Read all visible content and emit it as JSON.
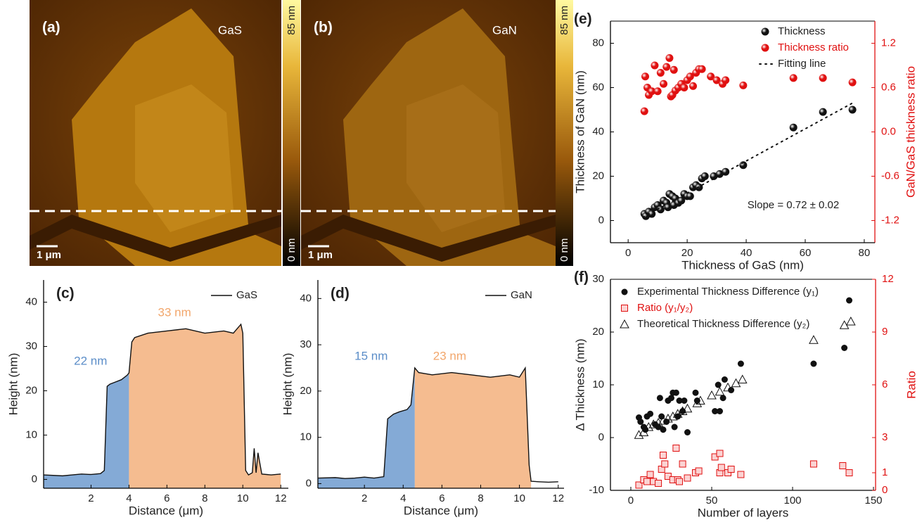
{
  "images": [
    {
      "panel": "(a)",
      "label": "GaS",
      "scale_bar": "1 μm",
      "colorbar": {
        "max": "85 nm",
        "min": "0 nm"
      }
    },
    {
      "panel": "(b)",
      "label": "GaN",
      "scale_bar": "1 μm",
      "colorbar": {
        "max": "85 nm",
        "min": "0 nm"
      }
    }
  ],
  "chart_data": [
    {
      "type": "line",
      "panel": "(c)",
      "xlabel": "Distance (μm)",
      "ylabel": "Height (nm)",
      "xlim": [
        -0.5,
        12.4
      ],
      "ylim": [
        -2,
        45
      ],
      "xticks": [
        2,
        4,
        6,
        8,
        10,
        12
      ],
      "yticks": [
        0,
        10,
        20,
        30,
        40
      ],
      "x": [
        -0.5,
        0.5,
        1,
        1.5,
        2,
        2.5,
        2.7,
        2.85,
        3.0,
        3.3,
        3.6,
        3.9,
        4.0,
        4.15,
        4.3,
        5,
        6,
        7,
        8,
        9,
        9.5,
        9.9,
        10.0,
        10.15,
        10.3,
        10.5,
        10.6,
        10.7,
        10.8,
        11,
        11.5,
        12
      ],
      "series": [
        {
          "name": "GaS",
          "color": "#111111",
          "values": [
            1,
            0.8,
            1,
            1.2,
            1.1,
            1.3,
            2,
            21,
            21.5,
            22,
            22.5,
            23.5,
            24,
            31,
            32,
            33,
            33.5,
            34,
            33,
            33.5,
            33,
            35,
            33,
            2,
            1,
            1.5,
            7,
            1.5,
            6,
            1.2,
            1,
            1.2
          ]
        }
      ],
      "regions": [
        {
          "label": "22 nm",
          "color": "#5b8dc8",
          "x": [
            -0.5,
            4.0
          ]
        },
        {
          "label": "33 nm",
          "color": "#f2a66b",
          "x": [
            4.0,
            12
          ]
        }
      ]
    },
    {
      "type": "line",
      "panel": "(d)",
      "xlabel": "Distance (μm)",
      "ylabel": "Height (nm)",
      "xlim": [
        -0.4,
        12.3
      ],
      "ylim": [
        -1,
        44
      ],
      "xticks": [
        2,
        4,
        6,
        8,
        10,
        12
      ],
      "yticks": [
        0,
        10,
        20,
        30,
        40
      ],
      "x": [
        -0.4,
        0.5,
        1,
        1.5,
        2,
        2.5,
        3.0,
        3.2,
        3.5,
        3.8,
        4.2,
        4.4,
        4.6,
        4.8,
        5.5,
        6.5,
        7.5,
        8.5,
        9.5,
        10.0,
        10.3,
        10.5,
        10.6,
        11,
        11.5,
        12
      ],
      "series": [
        {
          "name": "GaN",
          "color": "#111111",
          "values": [
            1.2,
            1.3,
            1.1,
            1.2,
            1.4,
            1.2,
            1.5,
            14,
            15,
            15.5,
            16,
            17,
            25,
            24,
            23.5,
            24,
            23.5,
            23,
            23.5,
            23,
            25,
            4,
            0.5,
            0.4,
            0.3,
            0.4
          ]
        }
      ],
      "regions": [
        {
          "label": "15 nm",
          "color": "#5b8dc8",
          "x": [
            -0.4,
            4.6
          ]
        },
        {
          "label": "23 nm",
          "color": "#f2a66b",
          "x": [
            4.6,
            10.6
          ]
        }
      ]
    },
    {
      "type": "scatter",
      "panel": "(e)",
      "xlabel": "Thickness of GaS (nm)",
      "ylabel": "Thickness of GaN (nm)",
      "y2label": "GaN/GaS thickness ratio",
      "xlim": [
        -6,
        83.6
      ],
      "ylim": [
        -10,
        90
      ],
      "y2lim": [
        -1.5,
        1.5
      ],
      "xticks": [
        0,
        20,
        40,
        60,
        80
      ],
      "yticks": [
        0,
        20,
        40,
        60,
        80
      ],
      "y2ticks": [
        -1.2,
        -0.6,
        {
          "value": 0,
          "label": "0.0"
        },
        0.6,
        1.2
      ],
      "annotation": "Slope = 0.72 ±  0.02",
      "series": [
        {
          "name": "Thickness",
          "color": "#111111",
          "marker": "sphere",
          "x": [
            5.5,
            6,
            7,
            8,
            9,
            10,
            11,
            12,
            13,
            13.5,
            14,
            15,
            15.5,
            16,
            17,
            18,
            19,
            20,
            21,
            22,
            23,
            24,
            25,
            26,
            29,
            31,
            33,
            39,
            56,
            66,
            76
          ],
          "values": [
            3,
            2,
            4,
            3,
            6,
            7,
            5,
            9,
            8,
            6,
            12,
            11,
            7,
            10,
            8,
            9,
            12,
            11,
            11,
            15,
            16,
            15,
            19,
            20,
            20,
            21,
            22,
            25,
            42,
            49,
            50
          ]
        },
        {
          "name": "Thickness ratio",
          "color": "#e01010",
          "marker": "sphere",
          "axis": "y2",
          "x": [
            5.5,
            5.8,
            6.5,
            7,
            8,
            9,
            10,
            11,
            12,
            13,
            14,
            14.5,
            15,
            15.5,
            16,
            17,
            18,
            19,
            20,
            21,
            22,
            23,
            24,
            25,
            28,
            30,
            32,
            33,
            39,
            56,
            66,
            76
          ],
          "values": [
            0.28,
            0.75,
            0.6,
            0.5,
            0.55,
            0.9,
            0.55,
            0.8,
            0.65,
            0.88,
            1.0,
            0.48,
            0.5,
            0.84,
            0.56,
            0.6,
            0.65,
            0.6,
            0.7,
            0.75,
            0.62,
            0.8,
            0.85,
            0.85,
            0.75,
            0.7,
            0.65,
            0.7,
            0.63,
            0.73,
            0.73,
            0.67
          ]
        },
        {
          "name": "Fitting line",
          "color": "#111111",
          "marker": "dotted-line",
          "x": [
            5,
            76
          ],
          "values": [
            1.5,
            53
          ]
        }
      ]
    },
    {
      "type": "scatter",
      "panel": "(f)",
      "xlabel": "Number of layers",
      "ylabel": "Δ Thickness (nm)",
      "y2label": "Ratio",
      "xlim": [
        -12.6,
        151.3
      ],
      "ylim": [
        -10,
        30
      ],
      "y2lim": [
        0,
        12
      ],
      "xticks": [
        0,
        50,
        100,
        150
      ],
      "yticks": [
        -10,
        0,
        10,
        20,
        30
      ],
      "y2ticks": [
        0,
        1,
        3,
        6,
        9,
        12
      ],
      "series": [
        {
          "name": "Experimental Thickness Difference (y₁)",
          "color": "#111111",
          "marker": "circle",
          "x": [
            5,
            6,
            8,
            9,
            10,
            12,
            15,
            17,
            18,
            19,
            20,
            22,
            23,
            25,
            26,
            27,
            28,
            29,
            30,
            32,
            33,
            35,
            40,
            41,
            52,
            54,
            55,
            57,
            58,
            62,
            68,
            113,
            132,
            135
          ],
          "values": [
            3.8,
            3,
            2,
            1.5,
            4,
            4.5,
            2.5,
            2,
            7.5,
            4,
            1.5,
            3,
            7,
            7.5,
            8.5,
            2,
            8.5,
            4,
            7,
            5,
            7,
            1,
            8.5,
            7,
            5,
            10,
            5,
            7.5,
            11,
            9,
            14,
            14,
            17,
            26
          ]
        },
        {
          "name": "Ratio (y₁/y₂)",
          "color": "#e01010",
          "marker": "square",
          "axis": "y2",
          "x": [
            5,
            8,
            10,
            12,
            14,
            17,
            19,
            20,
            21,
            23,
            26,
            28,
            29,
            30,
            32,
            35,
            40,
            42,
            52,
            55,
            55,
            56,
            60,
            62,
            68,
            113,
            131,
            135
          ],
          "values": [
            0.3,
            0.6,
            0.5,
            0.9,
            0.5,
            0.4,
            1.2,
            2,
            1.5,
            0.8,
            0.6,
            2.4,
            0.6,
            0.5,
            1.5,
            0.7,
            1.0,
            1.1,
            1.9,
            2.1,
            1,
            1.3,
            1.0,
            1.2,
            0.9,
            1.5,
            1.4,
            1.0
          ]
        },
        {
          "name": "Theoretical Thickness Difference (y₂)",
          "color": "#111111",
          "marker": "triangle",
          "x": [
            5,
            8,
            11,
            14,
            17,
            20,
            23,
            26,
            29,
            32,
            35,
            41,
            43,
            50,
            55,
            60,
            65,
            69,
            113,
            132,
            136
          ],
          "values": [
            0.5,
            1,
            2,
            2.5,
            2.8,
            3.2,
            3.6,
            4,
            4.5,
            5,
            5.5,
            6.5,
            7,
            8,
            8.7,
            9.5,
            10.3,
            11,
            18.5,
            21.3,
            22
          ]
        }
      ]
    }
  ]
}
